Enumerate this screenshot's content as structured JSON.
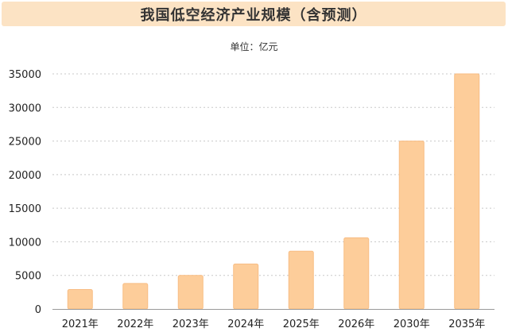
{
  "chart_data": {
    "type": "bar",
    "title": "我国低空经济产业规模（含预测）",
    "unit": "单位：亿元",
    "categories": [
      "2021年",
      "2022年",
      "2023年",
      "2024年",
      "2025年",
      "2026年",
      "2030年",
      "2035年"
    ],
    "values": [
      2900,
      3800,
      5000,
      6700,
      8600,
      10600,
      25000,
      35000
    ],
    "ylim": [
      0,
      35000
    ],
    "yticks": [
      0,
      5000,
      10000,
      15000,
      20000,
      25000,
      30000,
      35000
    ],
    "grid": true,
    "bar_color": "#fdcd9a",
    "bar_edge_color": "#f8bd84",
    "title_bg_color": "#fce3c4"
  }
}
